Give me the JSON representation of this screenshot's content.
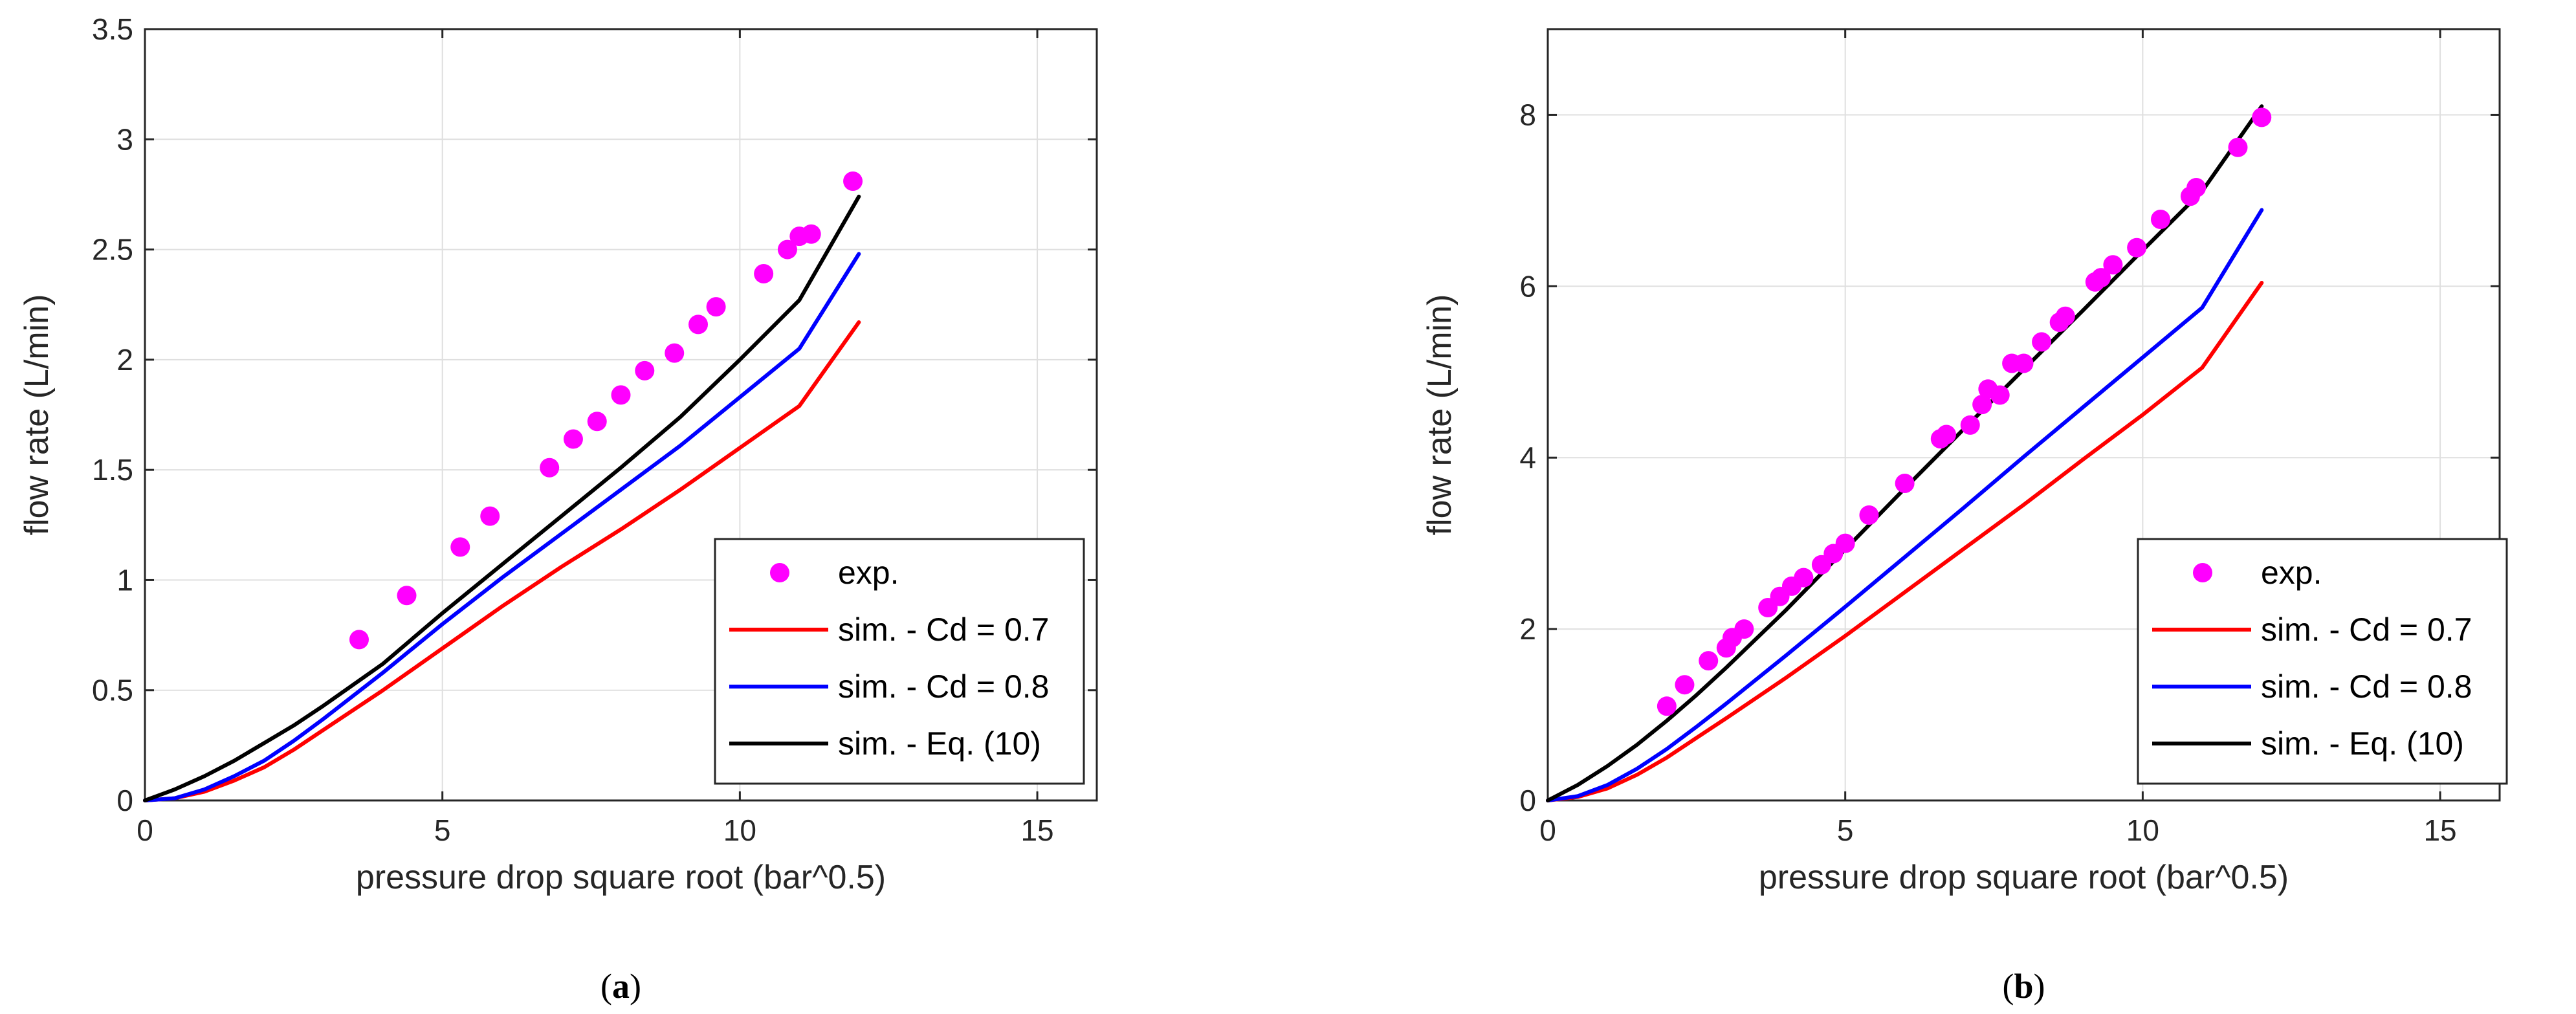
{
  "chart_data": [
    {
      "type": "line",
      "caption_open": "(",
      "caption_letter": "a",
      "caption_close": ")",
      "xlabel": "pressure drop square root (bar^0.5)",
      "ylabel": "flow rate (L/min)",
      "xlim": [
        0,
        16
      ],
      "ylim": [
        0,
        3.5
      ],
      "xticks": [
        0,
        5,
        10,
        15
      ],
      "xtick_labels": [
        "0",
        "5",
        "10",
        "15"
      ],
      "yticks": [
        0,
        0.5,
        1,
        1.5,
        2,
        2.5,
        3,
        3.5
      ],
      "ytick_labels": [
        "0",
        "0.5",
        "1",
        "1.5",
        "2",
        "2.5",
        "3",
        "3.5"
      ],
      "grid": true,
      "legend_position": "bottom-right",
      "series": [
        {
          "name": "exp.",
          "kind": "scatter",
          "color": "#ff00ff",
          "x": [
            3.6,
            4.4,
            5.3,
            5.8,
            6.8,
            7.2,
            7.6,
            8.0,
            8.4,
            8.9,
            9.3,
            9.6,
            10.4,
            10.8,
            11.0,
            11.2,
            11.9
          ],
          "y": [
            0.73,
            0.93,
            1.15,
            1.29,
            1.51,
            1.64,
            1.72,
            1.84,
            1.95,
            2.03,
            2.16,
            2.24,
            2.39,
            2.5,
            2.56,
            2.57,
            2.81
          ]
        },
        {
          "name": "sim. - Cd = 0.7",
          "kind": "line",
          "color": "#ff0000",
          "x": [
            0,
            0.5,
            1,
            1.5,
            2,
            2.5,
            3,
            4,
            5,
            6,
            7,
            8,
            9,
            10,
            11,
            12
          ],
          "y": [
            0,
            0.01,
            0.04,
            0.09,
            0.15,
            0.23,
            0.32,
            0.5,
            0.69,
            0.88,
            1.06,
            1.23,
            1.41,
            1.6,
            1.79,
            2.17
          ]
        },
        {
          "name": "sim. - Cd = 0.8",
          "kind": "line",
          "color": "#0000ff",
          "x": [
            0,
            0.5,
            1,
            1.5,
            2,
            2.5,
            3,
            4,
            5,
            6,
            7,
            8,
            9,
            10,
            11,
            12
          ],
          "y": [
            0,
            0.01,
            0.05,
            0.11,
            0.18,
            0.27,
            0.37,
            0.58,
            0.8,
            1.01,
            1.21,
            1.41,
            1.61,
            1.83,
            2.05,
            2.48
          ]
        },
        {
          "name": "sim. - Eq. (10)",
          "kind": "line",
          "color": "#000000",
          "x": [
            0,
            0.5,
            1,
            1.5,
            2,
            2.5,
            3,
            4,
            5,
            6,
            7,
            8,
            9,
            10,
            11,
            12
          ],
          "y": [
            0,
            0.05,
            0.11,
            0.18,
            0.26,
            0.34,
            0.43,
            0.62,
            0.85,
            1.07,
            1.29,
            1.51,
            1.74,
            2.0,
            2.27,
            2.74
          ]
        }
      ]
    },
    {
      "type": "line",
      "caption_open": "(",
      "caption_letter": "b",
      "caption_close": ")",
      "xlabel": "pressure drop square root (bar^0.5)",
      "ylabel": "flow rate (L/min)",
      "xlim": [
        0,
        16
      ],
      "ylim": [
        0,
        9
      ],
      "xticks": [
        0,
        5,
        10,
        15
      ],
      "xtick_labels": [
        "0",
        "5",
        "10",
        "15"
      ],
      "yticks": [
        0,
        2,
        4,
        6,
        8
      ],
      "ytick_labels": [
        "0",
        "2",
        "4",
        "6",
        "8"
      ],
      "grid": true,
      "legend_position": "bottom-right",
      "series": [
        {
          "name": "exp.",
          "kind": "scatter",
          "color": "#ff00ff",
          "x": [
            2.0,
            2.3,
            2.7,
            3.0,
            3.1,
            3.3,
            3.7,
            3.9,
            4.1,
            4.3,
            4.6,
            4.8,
            5.0,
            5.4,
            6.0,
            6.6,
            6.7,
            7.1,
            7.3,
            7.4,
            7.6,
            7.8,
            8.0,
            8.3,
            8.6,
            8.7,
            9.2,
            9.3,
            9.5,
            9.9,
            10.3,
            10.8,
            10.9,
            11.6,
            12.0
          ],
          "y": [
            1.1,
            1.35,
            1.63,
            1.78,
            1.9,
            2.0,
            2.25,
            2.38,
            2.5,
            2.6,
            2.75,
            2.88,
            3.0,
            3.33,
            3.7,
            4.22,
            4.27,
            4.38,
            4.62,
            4.8,
            4.73,
            5.1,
            5.1,
            5.35,
            5.58,
            5.65,
            6.05,
            6.1,
            6.25,
            6.45,
            6.78,
            7.05,
            7.15,
            7.62,
            7.97
          ]
        },
        {
          "name": "sim. - Cd = 0.7",
          "kind": "line",
          "color": "#ff0000",
          "x": [
            0,
            0.5,
            1,
            1.5,
            2,
            2.5,
            3,
            4,
            5,
            6,
            7,
            8,
            9,
            10,
            11,
            12
          ],
          "y": [
            0,
            0.04,
            0.14,
            0.3,
            0.5,
            0.73,
            0.96,
            1.43,
            1.92,
            2.43,
            2.94,
            3.45,
            3.98,
            4.5,
            5.05,
            6.04
          ]
        },
        {
          "name": "sim. - Cd = 0.8",
          "kind": "line",
          "color": "#0000ff",
          "x": [
            0,
            0.5,
            1,
            1.5,
            2,
            2.5,
            3,
            4,
            5,
            6,
            7,
            8,
            9,
            10,
            11,
            12
          ],
          "y": [
            0,
            0.05,
            0.18,
            0.37,
            0.6,
            0.86,
            1.13,
            1.69,
            2.26,
            2.84,
            3.42,
            4.01,
            4.59,
            5.17,
            5.75,
            6.89
          ]
        },
        {
          "name": "sim. - Eq. (10)",
          "kind": "line",
          "color": "#000000",
          "x": [
            0,
            0.5,
            1,
            1.5,
            2,
            2.5,
            3,
            4,
            5,
            6,
            7,
            8,
            9,
            10,
            11,
            12
          ],
          "y": [
            0,
            0.18,
            0.4,
            0.65,
            0.93,
            1.23,
            1.55,
            2.22,
            2.93,
            3.64,
            4.34,
            5.03,
            5.72,
            6.42,
            7.11,
            8.1
          ]
        }
      ]
    }
  ]
}
